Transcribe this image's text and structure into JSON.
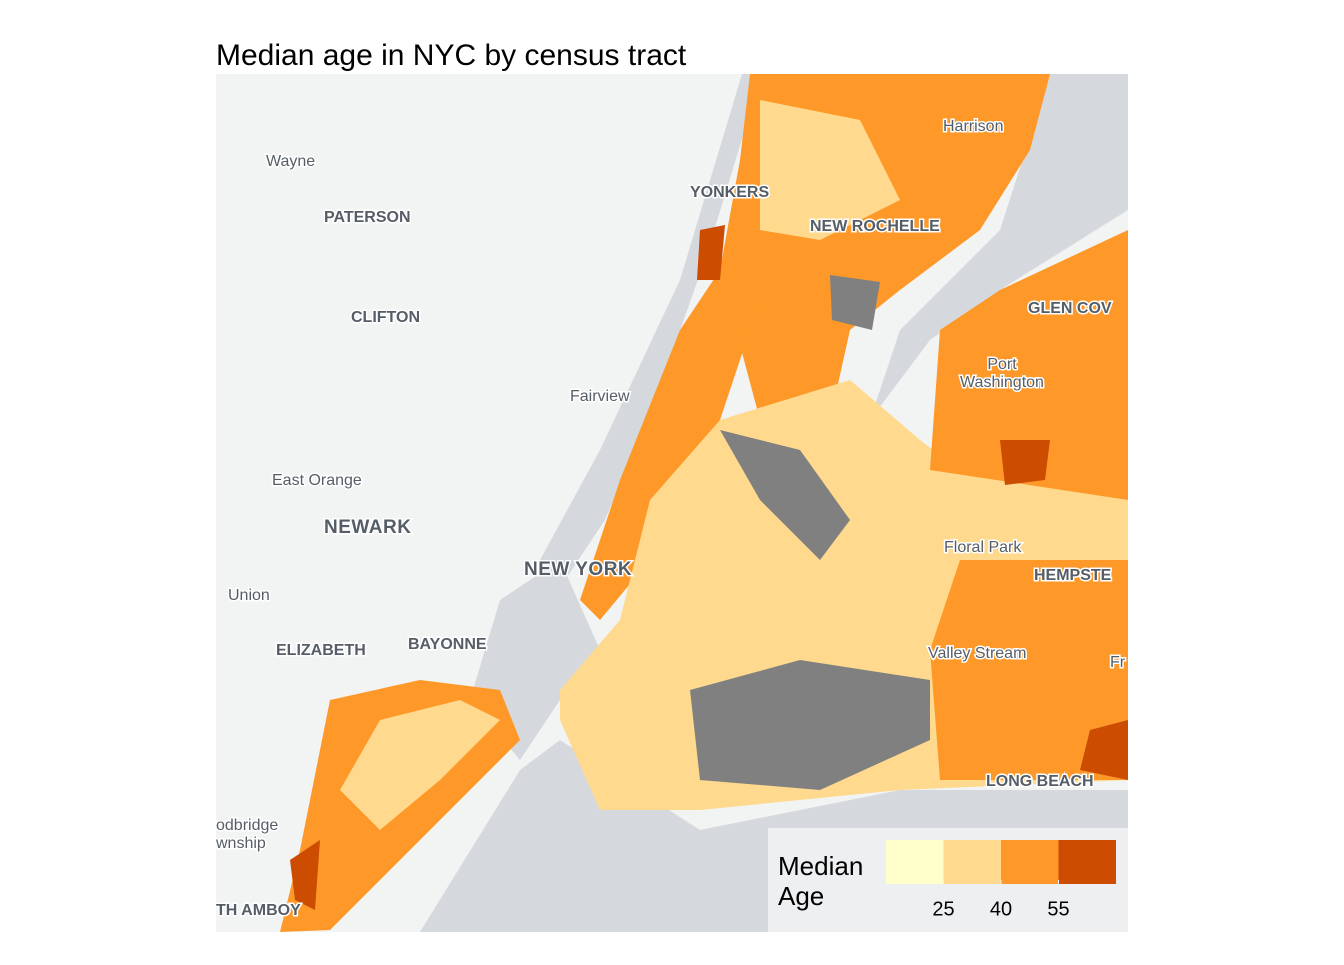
{
  "title": "Median age in NYC by census tract",
  "places": [
    "Wayne",
    "PATERSON",
    "CLIFTON",
    "Fairview",
    "East Orange",
    "NEWARK",
    "NEW YORK",
    "Union",
    "ELIZABETH",
    "BAYONNE",
    "YONKERS",
    "NEW ROCHELLE",
    "Harrison",
    "GLEN COV",
    "Port",
    "Washington",
    "Floral Park",
    "HEMPSTE",
    "Valley Stream",
    "Fr",
    "LONG BEACH",
    "odbridge",
    "wnship",
    "TH AMBOY"
  ],
  "legend": {
    "title_lines": [
      "Median",
      "Age"
    ],
    "colors": [
      "#ffffcc",
      "#fed98e",
      "#fe9929",
      "#cc4c02"
    ],
    "ticks": [
      25,
      40,
      55
    ],
    "range": [
      10,
      70
    ]
  }
}
